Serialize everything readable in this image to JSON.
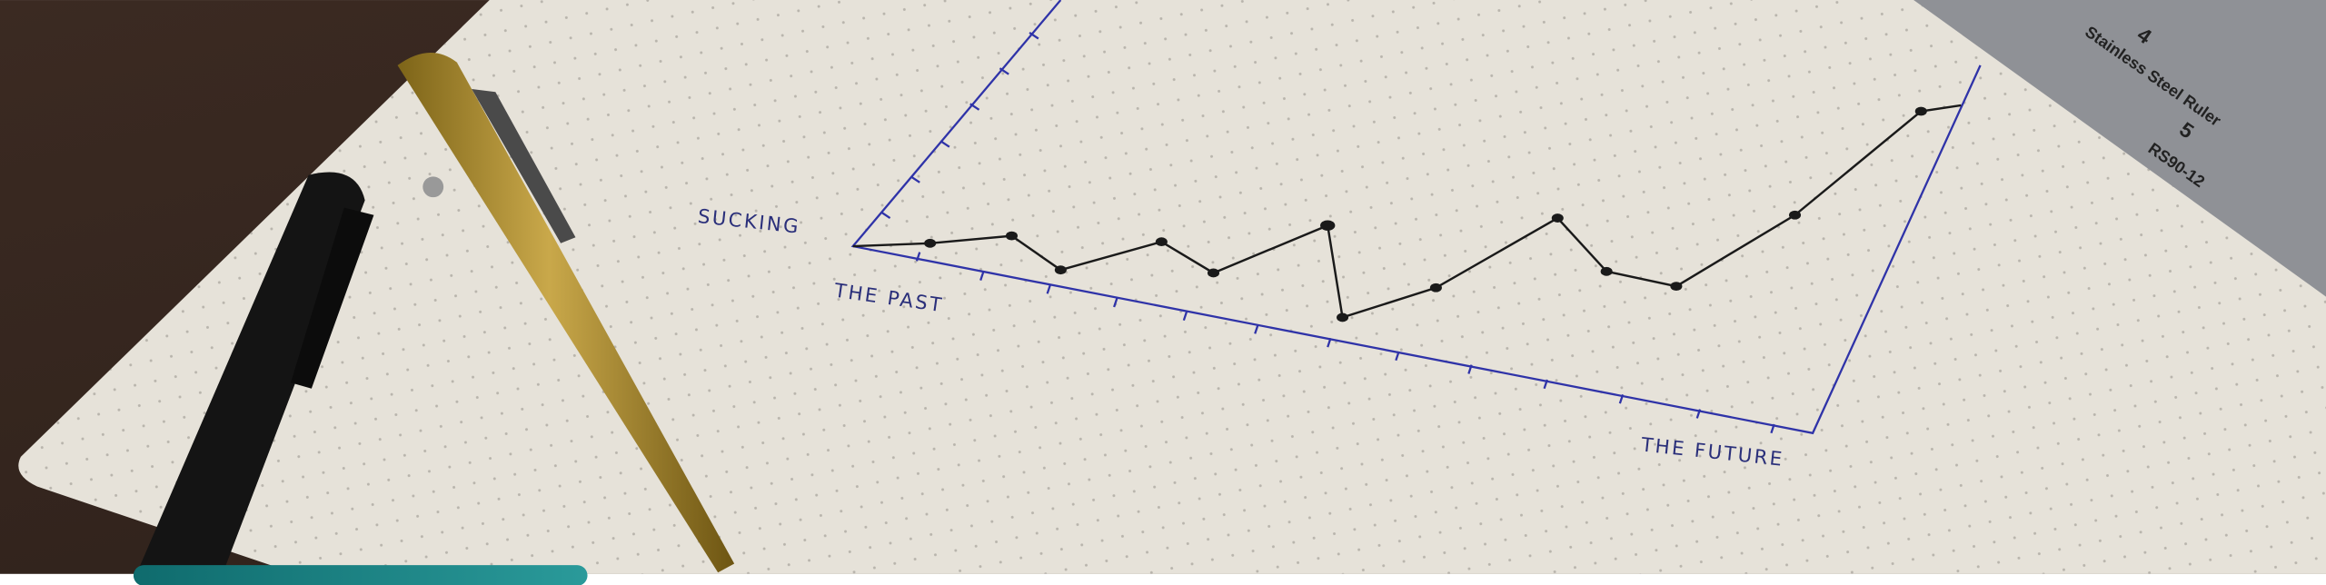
{
  "photo": {
    "labels": {
      "top": "SUCKING",
      "start": "THE PAST",
      "end": "THE FUTURE"
    },
    "ruler": {
      "brand": "Stainless Steel Ruler",
      "model": "RS90-12",
      "marks": [
        "4",
        "5"
      ]
    }
  }
}
